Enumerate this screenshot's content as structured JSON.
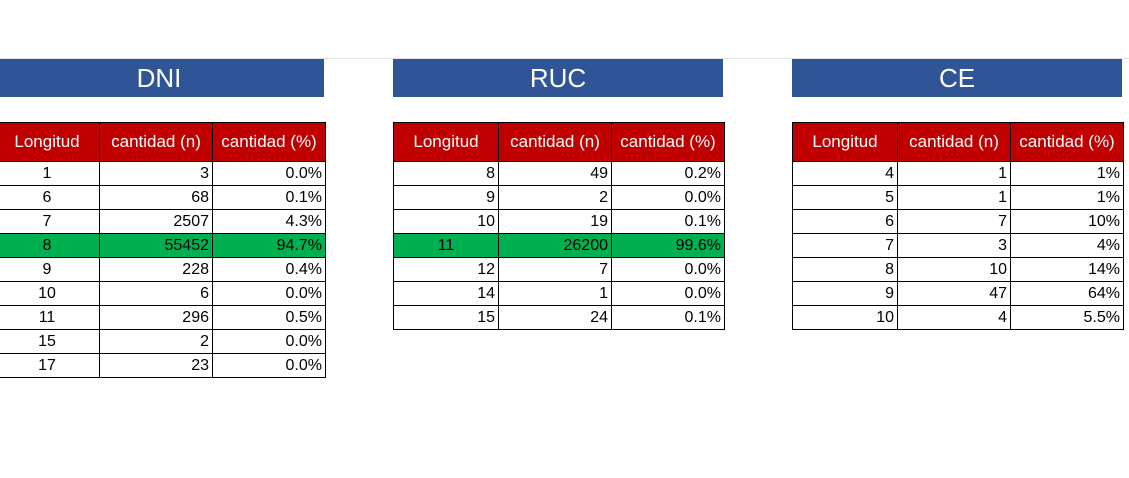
{
  "headers": [
    "Longitud",
    "cantidad (n)",
    "cantidad (%)"
  ],
  "colors": {
    "title_bg": "#2f5597",
    "header_bg": "#c00000",
    "highlight_bg": "#00b050"
  },
  "tables": [
    {
      "title": "DNI",
      "rows": [
        {
          "longitud": "1",
          "n": "3",
          "pct": "0.0%",
          "hl": false
        },
        {
          "longitud": "6",
          "n": "68",
          "pct": "0.1%",
          "hl": false
        },
        {
          "longitud": "7",
          "n": "2507",
          "pct": "4.3%",
          "hl": false
        },
        {
          "longitud": "8",
          "n": "55452",
          "pct": "94.7%",
          "hl": true
        },
        {
          "longitud": "9",
          "n": "228",
          "pct": "0.4%",
          "hl": false
        },
        {
          "longitud": "10",
          "n": "6",
          "pct": "0.0%",
          "hl": false
        },
        {
          "longitud": "11",
          "n": "296",
          "pct": "0.5%",
          "hl": false
        },
        {
          "longitud": "15",
          "n": "2",
          "pct": "0.0%",
          "hl": false
        },
        {
          "longitud": "17",
          "n": "23",
          "pct": "0.0%",
          "hl": false
        }
      ]
    },
    {
      "title": "RUC",
      "rows": [
        {
          "longitud": "8",
          "n": "49",
          "pct": "0.2%",
          "hl": false
        },
        {
          "longitud": "9",
          "n": "2",
          "pct": "0.0%",
          "hl": false
        },
        {
          "longitud": "10",
          "n": "19",
          "pct": "0.1%",
          "hl": false
        },
        {
          "longitud": "11",
          "n": "26200",
          "pct": "99.6%",
          "hl": true
        },
        {
          "longitud": "12",
          "n": "7",
          "pct": "0.0%",
          "hl": false
        },
        {
          "longitud": "14",
          "n": "1",
          "pct": "0.0%",
          "hl": false
        },
        {
          "longitud": "15",
          "n": "24",
          "pct": "0.1%",
          "hl": false
        }
      ]
    },
    {
      "title": "CE",
      "rows": [
        {
          "longitud": "4",
          "n": "1",
          "pct": "1%",
          "hl": false
        },
        {
          "longitud": "5",
          "n": "1",
          "pct": "1%",
          "hl": false
        },
        {
          "longitud": "6",
          "n": "7",
          "pct": "10%",
          "hl": false
        },
        {
          "longitud": "7",
          "n": "3",
          "pct": "4%",
          "hl": false
        },
        {
          "longitud": "8",
          "n": "10",
          "pct": "14%",
          "hl": false
        },
        {
          "longitud": "9",
          "n": "47",
          "pct": "64%",
          "hl": false
        },
        {
          "longitud": "10",
          "n": "4",
          "pct": "5.5%",
          "hl": false
        }
      ]
    }
  ]
}
